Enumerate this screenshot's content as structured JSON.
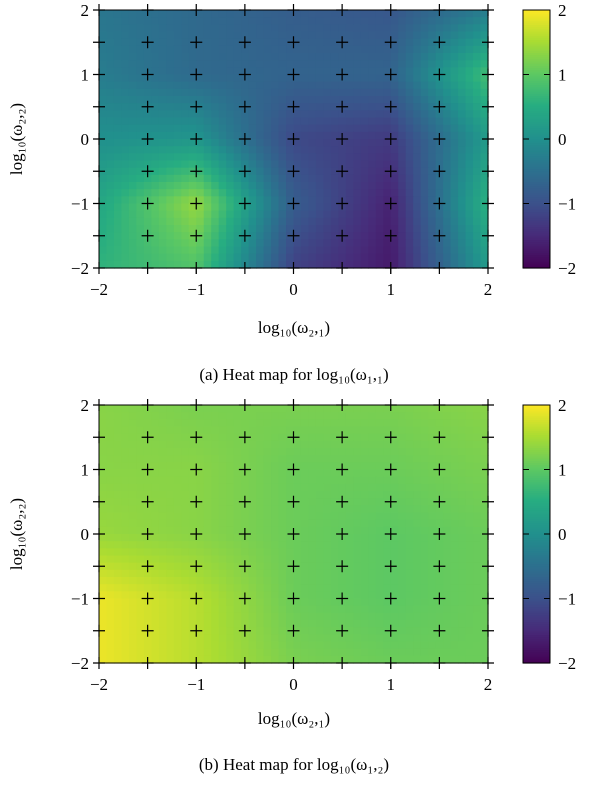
{
  "chart_data": [
    {
      "type": "heatmap",
      "caption": "(a) Heat map for log₁₀(ω₁,₁)",
      "xlabel": "log₁₀(ω₂,₁)",
      "ylabel": "log₁₀(ω₂,₂)",
      "xlim": [
        -2,
        2
      ],
      "ylim": [
        -2,
        2
      ],
      "xticks": [
        -2,
        -1,
        0,
        1,
        2
      ],
      "yticks": [
        -2,
        -1,
        0,
        1,
        2
      ],
      "xtick_labels": [
        "−2",
        "−1",
        "0",
        "1",
        "2"
      ],
      "ytick_labels": [
        "−2",
        "−1",
        "0",
        "1",
        "2"
      ],
      "colorbar": {
        "range": [
          -2,
          2
        ],
        "ticks": [
          -2,
          -1,
          0,
          1,
          2
        ],
        "tick_labels": [
          "−2",
          "−1",
          "0",
          "1",
          "2"
        ],
        "colormap": "viridis"
      },
      "sample_grid": {
        "x": [
          -2,
          -1.5,
          -1,
          -0.5,
          0,
          0.5,
          1,
          1.5,
          2
        ],
        "y": [
          -2,
          -1.5,
          -1,
          -0.5,
          0,
          0.5,
          1,
          1.5,
          2
        ],
        "marker": "+"
      },
      "x": [
        -2,
        -1,
        0,
        1,
        2
      ],
      "y": [
        -2,
        -1,
        0,
        1,
        2
      ],
      "values": [
        [
          0.6,
          0.9,
          -1.2,
          -1.7,
          0.2
        ],
        [
          0.4,
          1.4,
          -0.8,
          -1.6,
          0.6
        ],
        [
          0.0,
          0.1,
          -1.1,
          -1.3,
          0.2
        ],
        [
          -0.3,
          -0.6,
          -0.7,
          -0.7,
          0.8
        ],
        [
          -0.4,
          -0.6,
          -0.8,
          -0.9,
          -0.3
        ]
      ]
    },
    {
      "type": "heatmap",
      "caption": "(b) Heat map for log₁₀(ω₁,₂)",
      "xlabel": "log₁₀(ω₂,₁)",
      "ylabel": "log₁₀(ω₂,₂)",
      "xlim": [
        -2,
        2
      ],
      "ylim": [
        -2,
        2
      ],
      "xticks": [
        -2,
        -1,
        0,
        1,
        2
      ],
      "yticks": [
        -2,
        -1,
        0,
        1,
        2
      ],
      "xtick_labels": [
        "−2",
        "−1",
        "0",
        "1",
        "2"
      ],
      "ytick_labels": [
        "−2",
        "−1",
        "0",
        "1",
        "2"
      ],
      "colorbar": {
        "range": [
          -2,
          2
        ],
        "ticks": [
          -2,
          -1,
          0,
          1,
          2
        ],
        "tick_labels": [
          "−2",
          "−1",
          "0",
          "1",
          "2"
        ],
        "colormap": "viridis"
      },
      "sample_grid": {
        "x": [
          -2,
          -1.5,
          -1,
          -0.5,
          0,
          0.5,
          1,
          1.5,
          2
        ],
        "y": [
          -2,
          -1.5,
          -1,
          -0.5,
          0,
          0.5,
          1,
          1.5,
          2
        ],
        "marker": "+"
      },
      "x": [
        -2,
        -1,
        0,
        1,
        2
      ],
      "y": [
        -2,
        -1,
        0,
        1,
        2
      ],
      "values": [
        [
          1.9,
          1.6,
          1.2,
          1.1,
          1.1
        ],
        [
          1.9,
          1.6,
          1.1,
          1.0,
          1.1
        ],
        [
          1.4,
          1.3,
          1.1,
          1.0,
          1.1
        ],
        [
          1.3,
          1.3,
          1.1,
          1.1,
          1.2
        ],
        [
          1.3,
          1.2,
          1.2,
          1.2,
          1.3
        ]
      ]
    }
  ]
}
